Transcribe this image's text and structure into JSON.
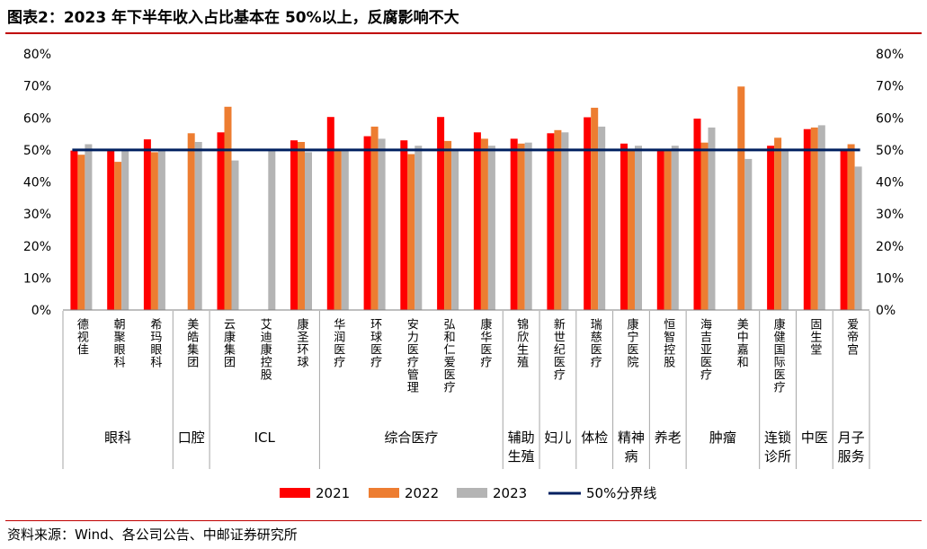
{
  "header": {
    "title": "图表2：2023 年下半年收入占比基本在 50%以上，反腐影响不大"
  },
  "footer": {
    "source": "资料来源：Wind、各公司公告、中邮证券研究所"
  },
  "chart_data": {
    "type": "bar",
    "title": "",
    "xlabel": "",
    "ylabel": "",
    "ylim": [
      0,
      0.8
    ],
    "yticks": [
      "0%",
      "10%",
      "20%",
      "30%",
      "40%",
      "50%",
      "60%",
      "70%",
      "80%"
    ],
    "y_right_ticks": [
      "0%",
      "10%",
      "20%",
      "30%",
      "40%",
      "50%",
      "60%",
      "70%",
      "80%"
    ],
    "grid": false,
    "legend_position": "bottom",
    "categories": [
      "德视佳",
      "朝聚眼科",
      "希玛眼科",
      "美皓集团",
      "云康集团",
      "艾迪康控股",
      "康圣环球",
      "华润医疗",
      "环球医疗",
      "安力医疗管理",
      "弘和仁爱医疗",
      "康华医疗",
      "锦欣生殖",
      "新世纪医疗",
      "瑞慈医疗",
      "康宁医院",
      "恒智控股",
      "海吉亚医疗",
      "美中嘉和",
      "康健国际医疗",
      "固生堂",
      "爱帝宫"
    ],
    "groups": [
      {
        "label": "眼科",
        "count": 3
      },
      {
        "label": "口腔",
        "count": 1
      },
      {
        "label": "ICL",
        "count": 3
      },
      {
        "label": "综合医疗",
        "count": 5
      },
      {
        "label": "辅助\n生殖",
        "count": 1
      },
      {
        "label": "妇儿",
        "count": 1
      },
      {
        "label": "体检",
        "count": 1
      },
      {
        "label": "精神\n病",
        "count": 1
      },
      {
        "label": "养老",
        "count": 1
      },
      {
        "label": "肿瘤",
        "count": 2
      },
      {
        "label": "连锁\n诊所",
        "count": 1
      },
      {
        "label": "中医",
        "count": 1
      },
      {
        "label": "月子\n服务",
        "count": 1
      }
    ],
    "series": [
      {
        "name": "2021",
        "color": "#ff0000",
        "values": [
          0.498,
          0.5,
          0.533,
          null,
          0.555,
          null,
          0.53,
          0.603,
          0.543,
          0.53,
          0.603,
          0.555,
          0.535,
          0.552,
          0.602,
          0.52,
          0.5,
          0.598,
          null,
          0.513,
          0.565,
          0.5
        ]
      },
      {
        "name": "2022",
        "color": "#ed7d31",
        "values": [
          0.485,
          0.463,
          0.493,
          0.552,
          0.635,
          null,
          0.525,
          0.5,
          0.573,
          0.487,
          0.528,
          0.535,
          0.52,
          0.562,
          0.632,
          0.5,
          0.5,
          0.523,
          0.698,
          0.538,
          0.57,
          0.518
        ]
      },
      {
        "name": "2023",
        "color": "#b4b4b4",
        "values": [
          0.518,
          0.5,
          0.5,
          0.525,
          0.467,
          0.5,
          0.493,
          0.5,
          0.535,
          0.513,
          0.5,
          0.513,
          0.523,
          0.555,
          0.573,
          0.513,
          0.513,
          0.57,
          0.472,
          0.5,
          0.577,
          0.448
        ]
      }
    ],
    "reference_line": {
      "name": "50%分界线",
      "value": 0.5,
      "color": "#002060"
    }
  }
}
